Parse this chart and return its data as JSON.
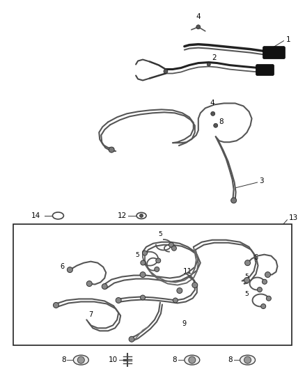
{
  "bg_color": "#ffffff",
  "line_color": "#555555",
  "label_color": "#000000",
  "fig_width": 4.38,
  "fig_height": 5.33,
  "dpi": 100
}
